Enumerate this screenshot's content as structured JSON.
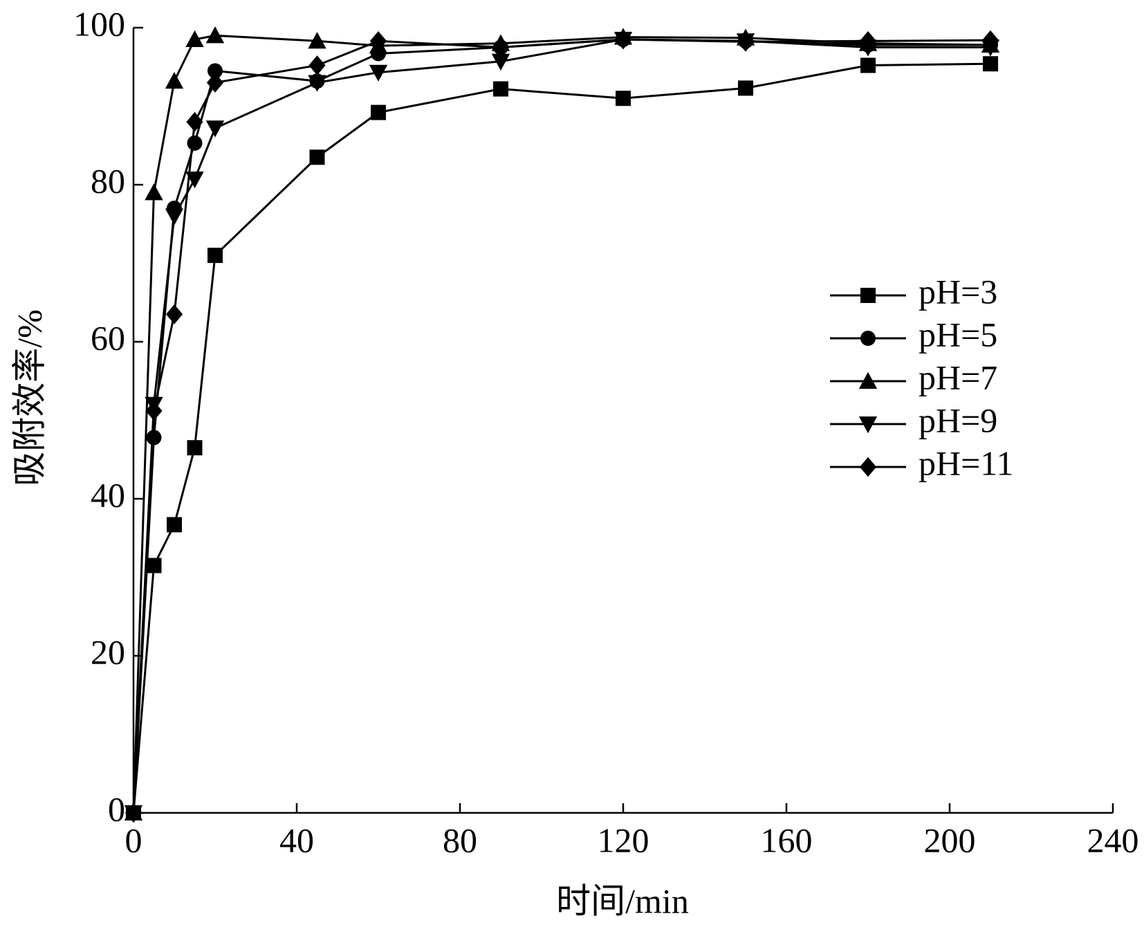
{
  "chart_data": {
    "type": "line",
    "xlabel": "时间/min",
    "ylabel": "吸附效率/%",
    "x": [
      0,
      5,
      10,
      15,
      20,
      45,
      60,
      90,
      120,
      150,
      180,
      210
    ],
    "series": [
      {
        "name": "pH=3",
        "color": "#000000",
        "marker": "square",
        "values": [
          0,
          31.5,
          36.7,
          46.5,
          71,
          83.5,
          89.2,
          92.2,
          91,
          92.3,
          95.2,
          95.4
        ]
      },
      {
        "name": "pH=5",
        "color": "#000000",
        "marker": "circle",
        "values": [
          0,
          47.8,
          77,
          85.3,
          94.5,
          93.2,
          96.7,
          97.5,
          98.5,
          98.3,
          97.8,
          97.8
        ]
      },
      {
        "name": "pH=7",
        "color": "#000000",
        "marker": "triangle-up",
        "values": [
          0,
          79,
          93.2,
          98.5,
          99,
          98.3,
          97.7,
          98,
          98.8,
          98.7,
          98,
          97.8
        ]
      },
      {
        "name": "pH=9",
        "color": "#000000",
        "marker": "triangle-down",
        "values": [
          0,
          52,
          76,
          80.7,
          87.2,
          93,
          94.3,
          95.7,
          98.5,
          98.3,
          97.5,
          97.5
        ]
      },
      {
        "name": "pH=11",
        "color": "#000000",
        "marker": "diamond",
        "values": [
          0,
          51.2,
          63.5,
          88,
          93,
          95.2,
          98.3,
          97.5,
          98.5,
          98.2,
          98.3,
          98.4
        ]
      }
    ],
    "xlim": [
      0,
      240
    ],
    "xticks": [
      0,
      40,
      80,
      120,
      160,
      200,
      240
    ],
    "ylim": [
      0,
      100
    ],
    "yticks": [
      0,
      20,
      40,
      60,
      80,
      100
    ],
    "grid": false,
    "legend": "right"
  }
}
